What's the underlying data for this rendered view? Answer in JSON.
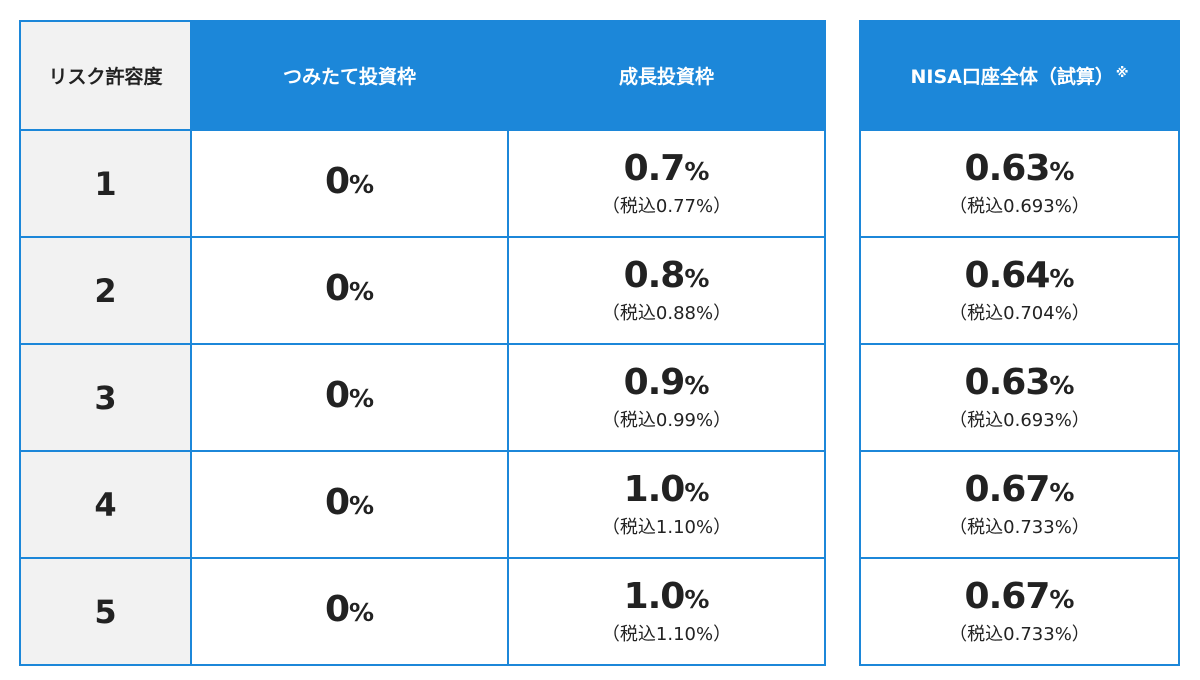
{
  "headers": {
    "risk": "リスク許容度",
    "tsumitate": "つみたて投資枠",
    "seicho": "成長投資枠",
    "nisa": "NISA口座全体（試算）",
    "nisa_mark": "※"
  },
  "percent_sign": "%",
  "rows": [
    {
      "risk": "1",
      "tsumitate": "0",
      "seicho": "0.7",
      "seicho_tax": "（税込0.77%）",
      "nisa": "0.63",
      "nisa_tax": "（税込0.693%）"
    },
    {
      "risk": "2",
      "tsumitate": "0",
      "seicho": "0.8",
      "seicho_tax": "（税込0.88%）",
      "nisa": "0.64",
      "nisa_tax": "（税込0.704%）"
    },
    {
      "risk": "3",
      "tsumitate": "0",
      "seicho": "0.9",
      "seicho_tax": "（税込0.99%）",
      "nisa": "0.63",
      "nisa_tax": "（税込0.693%）"
    },
    {
      "risk": "4",
      "tsumitate": "0",
      "seicho": "1.0",
      "seicho_tax": "（税込1.10%）",
      "nisa": "0.67",
      "nisa_tax": "（税込0.733%）"
    },
    {
      "risk": "5",
      "tsumitate": "0",
      "seicho": "1.0",
      "seicho_tax": "（税込1.10%）",
      "nisa": "0.67",
      "nisa_tax": "（税込0.733%）"
    }
  ],
  "colors": {
    "accent_blue": "#1c87d9",
    "header_gray": "#f2f2f2",
    "text": "#222222"
  }
}
